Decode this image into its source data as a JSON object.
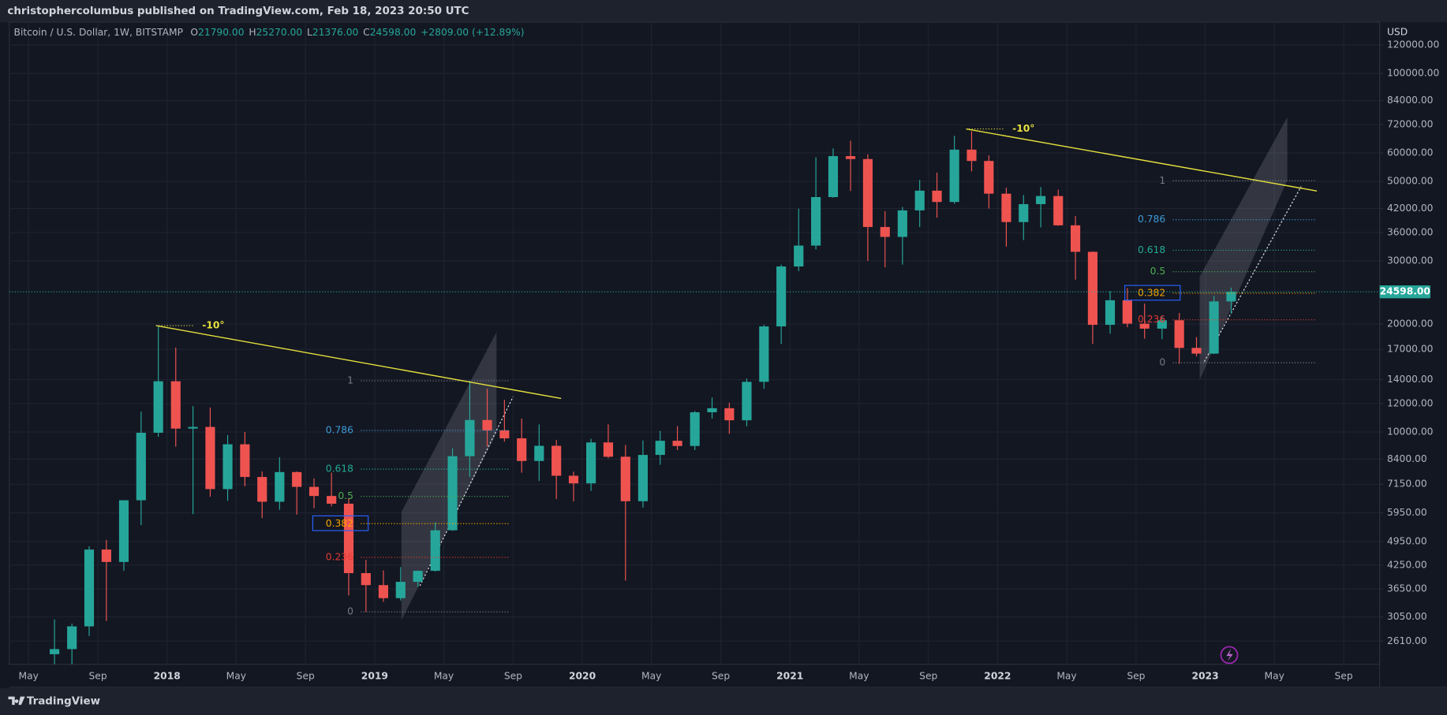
{
  "header": {
    "publisher": "christophercolumbus published on TradingView.com, Feb 18, 2023 20:50 UTC"
  },
  "chart_data": {
    "type": "candlestick",
    "symbol": "Bitcoin / U.S. Dollar, 1W, BITSTAMP",
    "ohlc_legend": [
      {
        "key": "O",
        "value": "21790.00"
      },
      {
        "key": "H",
        "value": "25270.00"
      },
      {
        "key": "L",
        "value": "21376.00"
      },
      {
        "key": "C",
        "value": "24598.00"
      }
    ],
    "change": "+2809.00 (+12.89%)",
    "currency": "USD",
    "log_scale": true,
    "grid": true,
    "up_color": "#26a69a",
    "down_color": "#ef5350",
    "x": [
      2017.458,
      2017.542,
      2017.625,
      2017.708,
      2017.792,
      2017.875,
      2017.958,
      2018.042,
      2018.125,
      2018.208,
      2018.292,
      2018.375,
      2018.458,
      2018.542,
      2018.625,
      2018.708,
      2018.792,
      2018.875,
      2018.958,
      2019.042,
      2019.125,
      2019.208,
      2019.292,
      2019.375,
      2019.458,
      2019.542,
      2019.625,
      2019.708,
      2019.792,
      2019.875,
      2019.958,
      2020.042,
      2020.125,
      2020.208,
      2020.292,
      2020.375,
      2020.458,
      2020.542,
      2020.625,
      2020.708,
      2020.792,
      2020.875,
      2020.958,
      2021.042,
      2021.125,
      2021.208,
      2021.292,
      2021.375,
      2021.458,
      2021.542,
      2021.625,
      2021.708,
      2021.792,
      2021.875,
      2021.958,
      2022.042,
      2022.125,
      2022.208,
      2022.292,
      2022.375,
      2022.458,
      2022.542,
      2022.625,
      2022.708,
      2022.792,
      2022.875,
      2022.958,
      2023.042,
      2023.125
    ],
    "open": [
      2400,
      2480,
      2870,
      4700,
      4340,
      6450,
      9950,
      13850,
      10220,
      10330,
      6930,
      9240,
      7490,
      6390,
      7730,
      7030,
      6630,
      6310,
      4040,
      3740,
      3440,
      3820,
      4100,
      5320,
      8560,
      10800,
      10100,
      9600,
      8300,
      9150,
      7550,
      7190,
      9350,
      8530,
      6410,
      8630,
      9450,
      9140,
      11350,
      11650,
      10780,
      13800,
      19700,
      28950,
      33100,
      45200,
      58800,
      57700,
      37300,
      35000,
      41500,
      47100,
      43800,
      61300,
      57000,
      46200,
      38500,
      43200,
      45500,
      37700,
      31800,
      19900,
      23300,
      20050,
      19420,
      20490,
      17160,
      16540,
      23130
    ],
    "high": [
      3000,
      2920,
      4800,
      5000,
      6450,
      11400,
      19666,
      17200,
      11800,
      11700,
      9800,
      10000,
      7760,
      8500,
      7760,
      7420,
      7700,
      6550,
      4400,
      4110,
      4200,
      4110,
      5600,
      9000,
      13880,
      13200,
      12300,
      10900,
      10500,
      9500,
      7750,
      9570,
      10500,
      9200,
      9470,
      10070,
      10380,
      11440,
      12480,
      12070,
      14100,
      19900,
      29300,
      41950,
      58350,
      61800,
      64900,
      59500,
      41300,
      42400,
      50500,
      52900,
      67000,
      69000,
      59100,
      48000,
      45800,
      48200,
      47400,
      40000,
      31900,
      24700,
      25200,
      22800,
      20990,
      21470,
      18400,
      23960,
      25270
    ],
    "low": [
      2100,
      1830,
      2700,
      2970,
      4100,
      5500,
      9700,
      9100,
      5900,
      6600,
      6430,
      7050,
      5750,
      6070,
      5880,
      6130,
      6200,
      3500,
      3150,
      3360,
      3390,
      3700,
      4080,
      5300,
      7500,
      9100,
      9400,
      7700,
      7300,
      6500,
      6400,
      6850,
      8450,
      3850,
      6150,
      8100,
      8900,
      8900,
      10900,
      9880,
      10370,
      13200,
      17600,
      28100,
      32300,
      45000,
      47000,
      30000,
      28800,
      29300,
      37300,
      39600,
      43300,
      53300,
      42000,
      32900,
      34300,
      37200,
      37600,
      26600,
      17600,
      18800,
      19600,
      18200,
      18150,
      15480,
      16250,
      16500,
      21376
    ],
    "close": [
      2480,
      2870,
      4700,
      4340,
      6450,
      9950,
      13850,
      10220,
      10330,
      6930,
      9240,
      7490,
      6390,
      7730,
      7030,
      6630,
      6310,
      4040,
      3740,
      3440,
      3820,
      4100,
      5320,
      8560,
      10800,
      10100,
      9600,
      8300,
      9150,
      7550,
      7190,
      9350,
      8530,
      6410,
      8630,
      9450,
      9140,
      11350,
      11650,
      10780,
      13800,
      19700,
      28950,
      33100,
      45200,
      58800,
      57700,
      37300,
      35000,
      41500,
      47100,
      43800,
      61300,
      57000,
      46200,
      38500,
      43200,
      45500,
      37700,
      31800,
      19900,
      23300,
      20050,
      19420,
      20490,
      17160,
      16540,
      23130,
      24598
    ],
    "xlim": [
      2017.24,
      2023.84
    ],
    "xticks": [
      {
        "value": 2017.333,
        "label": "May"
      },
      {
        "value": 2017.667,
        "label": "Sep"
      },
      2018,
      {
        "value": 2018.333,
        "label": "May"
      },
      {
        "value": 2018.667,
        "label": "Sep"
      },
      2019,
      {
        "value": 2019.333,
        "label": "May"
      },
      {
        "value": 2019.667,
        "label": "Sep"
      },
      2020,
      {
        "value": 2020.333,
        "label": "May"
      },
      {
        "value": 2020.667,
        "label": "Sep"
      },
      2021,
      {
        "value": 2021.333,
        "label": "May"
      },
      {
        "value": 2021.667,
        "label": "Sep"
      },
      2022,
      {
        "value": 2022.333,
        "label": "May"
      },
      {
        "value": 2022.667,
        "label": "Sep"
      },
      2023,
      {
        "value": 2023.333,
        "label": "May"
      },
      {
        "value": 2023.667,
        "label": "Sep"
      }
    ],
    "ylim": [
      2250,
      139000
    ],
    "yticks": [
      {
        "value": 120000,
        "label": "120000.00"
      },
      {
        "value": 100000,
        "label": "100000.00"
      },
      {
        "value": 84000,
        "label": "84000.00"
      },
      {
        "value": 72000,
        "label": "72000.00"
      },
      {
        "value": 60000,
        "label": "60000.00"
      },
      {
        "value": 50000,
        "label": "50000.00"
      },
      {
        "value": 42000,
        "label": "42000.00"
      },
      {
        "value": 36000,
        "label": "36000.00"
      },
      {
        "value": 30000,
        "label": "30000.00"
      },
      {
        "value": 20000,
        "label": "20000.00"
      },
      {
        "value": 17000,
        "label": "17000.00"
      },
      {
        "value": 14000,
        "label": "14000.00"
      },
      {
        "value": 12000,
        "label": "12000.00"
      },
      {
        "value": 10000,
        "label": "10000.00"
      },
      {
        "value": 8400,
        "label": "8400.00"
      },
      {
        "value": 7150,
        "label": "7150.00"
      },
      {
        "value": 5950,
        "label": "5950.00"
      },
      {
        "value": 4950,
        "label": "4950.00"
      },
      {
        "value": 4250,
        "label": "4250.00"
      },
      {
        "value": 3650,
        "label": "3650.00"
      },
      {
        "value": 3050,
        "label": "3050.00"
      },
      {
        "value": 2610,
        "label": "2610.00"
      }
    ],
    "last_price": {
      "value": 24598,
      "label": "24598.00",
      "color": "#26a69a"
    },
    "fib_retracements": [
      {
        "high": 13880,
        "low": 3150,
        "x": [
          2018.933,
          2019.653
        ],
        "levels": [
          {
            "value": 1,
            "color": "#787b86"
          },
          {
            "value": 0.786,
            "color": "#3d9bd6"
          },
          {
            "value": 0.618,
            "color": "#22ab94"
          },
          {
            "value": 0.5,
            "color": "#4caf50"
          },
          {
            "value": 0.382,
            "color": "#f7a600",
            "boxed": true
          },
          {
            "value": 0.236,
            "color": "#e53935"
          },
          {
            "value": 0,
            "color": "#787b86"
          }
        ]
      },
      {
        "high": 50200,
        "low": 15600,
        "x": [
          2022.844,
          2023.533
        ],
        "levels": [
          {
            "value": 1,
            "color": "#787b86"
          },
          {
            "value": 0.786,
            "color": "#3d9bd6"
          },
          {
            "value": 0.618,
            "color": "#22ab94"
          },
          {
            "value": 0.5,
            "color": "#4caf50"
          },
          {
            "value": 0.382,
            "color": "#f7a600",
            "boxed": true
          },
          {
            "value": 0.236,
            "color": "#e53935"
          },
          {
            "value": 0,
            "color": "#787b86"
          }
        ]
      }
    ],
    "trend_lines": [
      {
        "x": [
          2017.947,
          2019.898
        ],
        "y": [
          19800,
          12400
        ],
        "label": "-10°",
        "color": "#e6e13c"
      },
      {
        "x": [
          2021.849,
          2023.538
        ],
        "y": [
          70000,
          47000
        ],
        "label": "-10°",
        "color": "#e6e13c"
      }
    ]
  },
  "footer": {
    "brand": "TradingView"
  }
}
